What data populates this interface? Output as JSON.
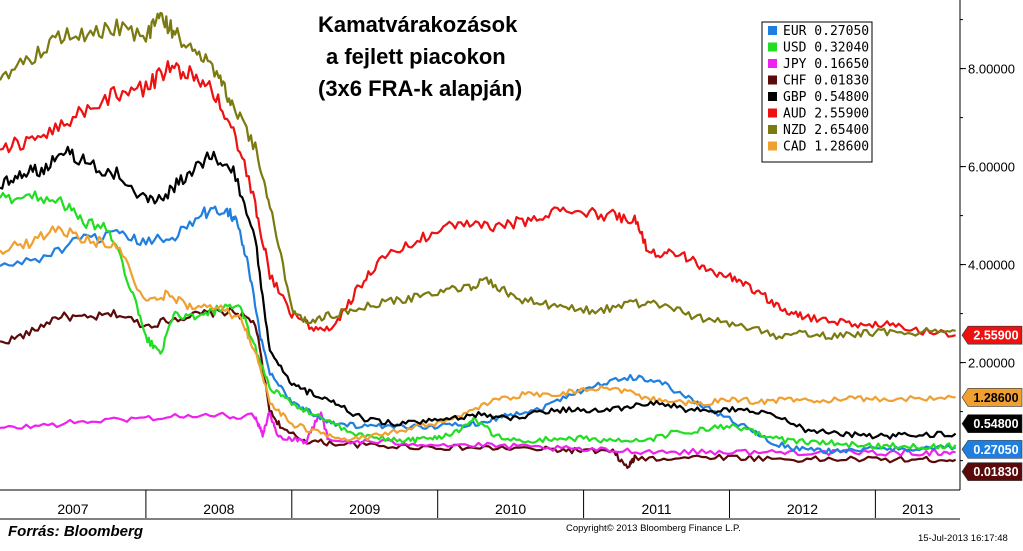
{
  "chart_data": {
    "type": "line",
    "title_lines": [
      "Kamatvárakozások",
      "a fejlett piacokon",
      "(3x6 FRA-k alapján)"
    ],
    "xlabel": "",
    "ylabel": "",
    "x_categories": [
      "2007",
      "2008",
      "2009",
      "2010",
      "2011",
      "2012",
      "2013"
    ],
    "x_range": [
      2007.0,
      2013.58
    ],
    "y_range": [
      -0.6,
      9.4
    ],
    "y_ticks": [
      2.0,
      4.0,
      6.0,
      8.0
    ],
    "y_tick_labels": [
      "2.00000",
      "4.00000",
      "6.00000",
      "8.00000"
    ],
    "grid": false,
    "legend_position": "top-right",
    "series": [
      {
        "name": "EUR",
        "last_value_label": "0.27050",
        "color": "#1f7fe0",
        "points": [
          [
            2007.0,
            3.95
          ],
          [
            2007.3,
            4.15
          ],
          [
            2007.55,
            4.5
          ],
          [
            2007.8,
            4.6
          ],
          [
            2008.0,
            4.45
          ],
          [
            2008.2,
            4.6
          ],
          [
            2008.4,
            5.05
          ],
          [
            2008.55,
            5.15
          ],
          [
            2008.62,
            4.9
          ],
          [
            2008.7,
            4.0
          ],
          [
            2008.78,
            2.6
          ],
          [
            2008.85,
            1.8
          ],
          [
            2009.0,
            1.2
          ],
          [
            2009.15,
            0.95
          ],
          [
            2009.3,
            0.75
          ],
          [
            2009.5,
            0.7
          ],
          [
            2009.7,
            0.68
          ],
          [
            2009.9,
            0.7
          ],
          [
            2010.1,
            0.72
          ],
          [
            2010.3,
            0.78
          ],
          [
            2010.5,
            0.95
          ],
          [
            2010.7,
            1.05
          ],
          [
            2010.9,
            1.35
          ],
          [
            2011.1,
            1.55
          ],
          [
            2011.3,
            1.7
          ],
          [
            2011.5,
            1.65
          ],
          [
            2011.7,
            1.3
          ],
          [
            2011.9,
            1.0
          ],
          [
            2012.1,
            0.7
          ],
          [
            2012.3,
            0.35
          ],
          [
            2012.5,
            0.22
          ],
          [
            2012.7,
            0.2
          ],
          [
            2012.9,
            0.22
          ],
          [
            2013.1,
            0.24
          ],
          [
            2013.3,
            0.25
          ],
          [
            2013.55,
            0.27
          ]
        ]
      },
      {
        "name": "USD",
        "last_value_label": "0.32040",
        "color": "#22dd22",
        "points": [
          [
            2007.0,
            5.35
          ],
          [
            2007.2,
            5.4
          ],
          [
            2007.4,
            5.35
          ],
          [
            2007.55,
            4.9
          ],
          [
            2007.75,
            4.7
          ],
          [
            2007.9,
            3.5
          ],
          [
            2008.0,
            2.5
          ],
          [
            2008.1,
            2.2
          ],
          [
            2008.2,
            3.0
          ],
          [
            2008.35,
            2.9
          ],
          [
            2008.5,
            3.1
          ],
          [
            2008.65,
            3.1
          ],
          [
            2008.75,
            2.3
          ],
          [
            2008.85,
            1.5
          ],
          [
            2009.0,
            1.15
          ],
          [
            2009.2,
            0.9
          ],
          [
            2009.4,
            0.55
          ],
          [
            2009.6,
            0.45
          ],
          [
            2009.8,
            0.42
          ],
          [
            2009.95,
            0.45
          ],
          [
            2010.1,
            0.55
          ],
          [
            2010.25,
            0.85
          ],
          [
            2010.4,
            0.5
          ],
          [
            2010.6,
            0.38
          ],
          [
            2010.8,
            0.45
          ],
          [
            2011.0,
            0.45
          ],
          [
            2011.2,
            0.42
          ],
          [
            2011.4,
            0.38
          ],
          [
            2011.6,
            0.55
          ],
          [
            2011.8,
            0.62
          ],
          [
            2012.0,
            0.7
          ],
          [
            2012.2,
            0.55
          ],
          [
            2012.4,
            0.4
          ],
          [
            2012.6,
            0.38
          ],
          [
            2012.8,
            0.33
          ],
          [
            2013.0,
            0.3
          ],
          [
            2013.2,
            0.3
          ],
          [
            2013.4,
            0.28
          ],
          [
            2013.55,
            0.32
          ]
        ]
      },
      {
        "name": "JPY",
        "last_value_label": "0.16650",
        "color": "#ee22ee",
        "points": [
          [
            2007.0,
            0.65
          ],
          [
            2007.3,
            0.72
          ],
          [
            2007.6,
            0.8
          ],
          [
            2007.9,
            0.85
          ],
          [
            2008.2,
            0.9
          ],
          [
            2008.5,
            0.92
          ],
          [
            2008.75,
            0.9
          ],
          [
            2008.8,
            0.55
          ],
          [
            2008.85,
            1.0
          ],
          [
            2008.9,
            0.5
          ],
          [
            2009.0,
            0.45
          ],
          [
            2009.1,
            0.4
          ],
          [
            2009.2,
            1.0
          ],
          [
            2009.25,
            0.4
          ],
          [
            2009.5,
            0.38
          ],
          [
            2009.8,
            0.36
          ],
          [
            2010.1,
            0.32
          ],
          [
            2010.4,
            0.3
          ],
          [
            2010.7,
            0.26
          ],
          [
            2011.0,
            0.22
          ],
          [
            2011.3,
            0.2
          ],
          [
            2011.6,
            0.18
          ],
          [
            2011.9,
            0.18
          ],
          [
            2012.2,
            0.17
          ],
          [
            2012.5,
            0.17
          ],
          [
            2012.8,
            0.16
          ],
          [
            2013.1,
            0.16
          ],
          [
            2013.35,
            0.16
          ],
          [
            2013.55,
            0.17
          ]
        ]
      },
      {
        "name": "CHF",
        "last_value_label": "0.01830",
        "color": "#5a0a0a",
        "points": [
          [
            2007.0,
            2.4
          ],
          [
            2007.2,
            2.6
          ],
          [
            2007.4,
            2.95
          ],
          [
            2007.6,
            2.9
          ],
          [
            2007.8,
            3.0
          ],
          [
            2008.0,
            2.75
          ],
          [
            2008.2,
            2.9
          ],
          [
            2008.4,
            3.0
          ],
          [
            2008.6,
            3.05
          ],
          [
            2008.75,
            2.8
          ],
          [
            2008.85,
            1.0
          ],
          [
            2008.95,
            0.6
          ],
          [
            2009.1,
            0.4
          ],
          [
            2009.3,
            0.35
          ],
          [
            2009.6,
            0.3
          ],
          [
            2009.9,
            0.28
          ],
          [
            2010.2,
            0.26
          ],
          [
            2010.5,
            0.25
          ],
          [
            2010.8,
            0.22
          ],
          [
            2011.0,
            0.2
          ],
          [
            2011.2,
            0.18
          ],
          [
            2011.3,
            -0.15
          ],
          [
            2011.35,
            0.05
          ],
          [
            2011.6,
            0.05
          ],
          [
            2011.9,
            0.08
          ],
          [
            2012.2,
            0.05
          ],
          [
            2012.5,
            0.02
          ],
          [
            2012.8,
            0.03
          ],
          [
            2013.1,
            0.02
          ],
          [
            2013.35,
            0.02
          ],
          [
            2013.55,
            0.02
          ]
        ]
      },
      {
        "name": "GBP",
        "last_value_label": "0.54800",
        "color": "#000000",
        "points": [
          [
            2007.0,
            5.6
          ],
          [
            2007.15,
            5.9
          ],
          [
            2007.3,
            5.95
          ],
          [
            2007.45,
            6.35
          ],
          [
            2007.6,
            6.05
          ],
          [
            2007.8,
            5.85
          ],
          [
            2008.0,
            5.3
          ],
          [
            2008.15,
            5.45
          ],
          [
            2008.3,
            5.9
          ],
          [
            2008.45,
            6.25
          ],
          [
            2008.6,
            5.9
          ],
          [
            2008.75,
            4.5
          ],
          [
            2008.85,
            2.2
          ],
          [
            2009.0,
            1.55
          ],
          [
            2009.15,
            1.35
          ],
          [
            2009.3,
            1.15
          ],
          [
            2009.5,
            0.85
          ],
          [
            2009.7,
            0.75
          ],
          [
            2009.9,
            0.78
          ],
          [
            2010.1,
            0.85
          ],
          [
            2010.3,
            0.95
          ],
          [
            2010.5,
            0.85
          ],
          [
            2010.7,
            1.0
          ],
          [
            2010.9,
            1.05
          ],
          [
            2011.1,
            1.0
          ],
          [
            2011.3,
            1.1
          ],
          [
            2011.5,
            1.2
          ],
          [
            2011.7,
            1.05
          ],
          [
            2011.9,
            1.0
          ],
          [
            2012.1,
            1.05
          ],
          [
            2012.3,
            0.95
          ],
          [
            2012.5,
            0.65
          ],
          [
            2012.7,
            0.55
          ],
          [
            2012.9,
            0.52
          ],
          [
            2013.1,
            0.5
          ],
          [
            2013.3,
            0.52
          ],
          [
            2013.55,
            0.55
          ]
        ]
      },
      {
        "name": "AUD",
        "last_value_label": "2.55900",
        "color": "#ee1111",
        "points": [
          [
            2007.0,
            6.4
          ],
          [
            2007.2,
            6.5
          ],
          [
            2007.4,
            6.8
          ],
          [
            2007.6,
            7.2
          ],
          [
            2007.8,
            7.5
          ],
          [
            2008.0,
            7.6
          ],
          [
            2008.15,
            8.0
          ],
          [
            2008.3,
            7.9
          ],
          [
            2008.45,
            7.55
          ],
          [
            2008.6,
            6.8
          ],
          [
            2008.75,
            5.2
          ],
          [
            2008.85,
            3.8
          ],
          [
            2009.0,
            3.0
          ],
          [
            2009.15,
            2.7
          ],
          [
            2009.3,
            2.75
          ],
          [
            2009.45,
            3.5
          ],
          [
            2009.6,
            4.1
          ],
          [
            2009.8,
            4.4
          ],
          [
            2010.0,
            4.7
          ],
          [
            2010.2,
            4.85
          ],
          [
            2010.4,
            4.75
          ],
          [
            2010.6,
            4.9
          ],
          [
            2010.8,
            5.1
          ],
          [
            2011.0,
            5.05
          ],
          [
            2011.2,
            5.0
          ],
          [
            2011.35,
            4.95
          ],
          [
            2011.45,
            4.2
          ],
          [
            2011.6,
            4.3
          ],
          [
            2011.75,
            4.1
          ],
          [
            2011.9,
            3.8
          ],
          [
            2012.05,
            3.7
          ],
          [
            2012.2,
            3.45
          ],
          [
            2012.35,
            3.1
          ],
          [
            2012.5,
            2.95
          ],
          [
            2012.7,
            2.85
          ],
          [
            2012.9,
            2.75
          ],
          [
            2013.1,
            2.8
          ],
          [
            2013.3,
            2.65
          ],
          [
            2013.55,
            2.56
          ]
        ]
      },
      {
        "name": "NZD",
        "last_value_label": "2.65400",
        "color": "#7a7a10",
        "points": [
          [
            2007.0,
            7.85
          ],
          [
            2007.2,
            8.2
          ],
          [
            2007.4,
            8.65
          ],
          [
            2007.6,
            8.7
          ],
          [
            2007.8,
            8.85
          ],
          [
            2008.0,
            8.6
          ],
          [
            2008.1,
            9.05
          ],
          [
            2008.2,
            8.7
          ],
          [
            2008.35,
            8.4
          ],
          [
            2008.5,
            7.8
          ],
          [
            2008.6,
            7.2
          ],
          [
            2008.75,
            6.4
          ],
          [
            2008.85,
            5.2
          ],
          [
            2009.0,
            3.1
          ],
          [
            2009.1,
            2.85
          ],
          [
            2009.25,
            2.95
          ],
          [
            2009.4,
            3.05
          ],
          [
            2009.6,
            3.2
          ],
          [
            2009.8,
            3.3
          ],
          [
            2010.0,
            3.45
          ],
          [
            2010.2,
            3.5
          ],
          [
            2010.35,
            3.7
          ],
          [
            2010.5,
            3.35
          ],
          [
            2010.7,
            3.2
          ],
          [
            2010.9,
            3.1
          ],
          [
            2011.1,
            3.05
          ],
          [
            2011.3,
            3.2
          ],
          [
            2011.5,
            3.2
          ],
          [
            2011.7,
            3.0
          ],
          [
            2011.9,
            2.85
          ],
          [
            2012.1,
            2.75
          ],
          [
            2012.3,
            2.55
          ],
          [
            2012.5,
            2.6
          ],
          [
            2012.7,
            2.55
          ],
          [
            2012.9,
            2.6
          ],
          [
            2013.1,
            2.62
          ],
          [
            2013.35,
            2.63
          ],
          [
            2013.55,
            2.65
          ]
        ]
      },
      {
        "name": "CAD",
        "last_value_label": "1.28600",
        "color": "#f0a030",
        "points": [
          [
            2007.0,
            4.3
          ],
          [
            2007.2,
            4.45
          ],
          [
            2007.4,
            4.75
          ],
          [
            2007.6,
            4.5
          ],
          [
            2007.8,
            4.4
          ],
          [
            2008.0,
            3.2
          ],
          [
            2008.15,
            3.4
          ],
          [
            2008.3,
            3.15
          ],
          [
            2008.5,
            3.1
          ],
          [
            2008.65,
            2.9
          ],
          [
            2008.75,
            2.2
          ],
          [
            2008.85,
            1.2
          ],
          [
            2009.0,
            0.75
          ],
          [
            2009.2,
            0.55
          ],
          [
            2009.4,
            0.45
          ],
          [
            2009.6,
            0.5
          ],
          [
            2009.8,
            0.65
          ],
          [
            2010.0,
            0.75
          ],
          [
            2010.2,
            0.95
          ],
          [
            2010.4,
            1.25
          ],
          [
            2010.6,
            1.35
          ],
          [
            2010.8,
            1.35
          ],
          [
            2011.0,
            1.45
          ],
          [
            2011.2,
            1.5
          ],
          [
            2011.4,
            1.3
          ],
          [
            2011.6,
            1.2
          ],
          [
            2011.8,
            1.15
          ],
          [
            2012.0,
            1.25
          ],
          [
            2012.2,
            1.2
          ],
          [
            2012.4,
            1.25
          ],
          [
            2012.6,
            1.22
          ],
          [
            2012.8,
            1.25
          ],
          [
            2013.0,
            1.26
          ],
          [
            2013.3,
            1.27
          ],
          [
            2013.55,
            1.29
          ]
        ]
      }
    ]
  },
  "footer": {
    "source": "Forrás: Bloomberg",
    "copyright": "Copyright© 2013 Bloomberg Finance L.P.",
    "timestamp": "15-Jul-2013 16:17:48"
  }
}
